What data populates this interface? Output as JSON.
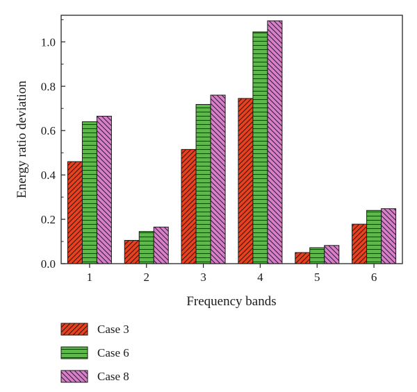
{
  "chart_data": {
    "type": "bar",
    "title": "",
    "xlabel": "Frequency bands",
    "ylabel": "Energy ratio deviation",
    "categories": [
      "1",
      "2",
      "3",
      "4",
      "5",
      "6"
    ],
    "ylim": [
      0,
      1.12
    ],
    "yticks": [
      "0.0",
      "0.2",
      "0.4",
      "0.6",
      "0.8",
      "1.0"
    ],
    "legend_position": "bottom-left",
    "grid": false,
    "series": [
      {
        "name": "Case 3",
        "color": "#e8411f",
        "hatch": "diagonal-forward",
        "values": [
          0.46,
          0.105,
          0.515,
          0.745,
          0.05,
          0.178
        ]
      },
      {
        "name": "Case 6",
        "color": "#5fb84b",
        "hatch": "horizontal",
        "values": [
          0.64,
          0.145,
          0.718,
          1.045,
          0.072,
          0.24
        ]
      },
      {
        "name": "Case 8",
        "color": "#d97fc4",
        "hatch": "diagonal-backward",
        "values": [
          0.665,
          0.165,
          0.76,
          1.095,
          0.082,
          0.248
        ]
      }
    ]
  }
}
